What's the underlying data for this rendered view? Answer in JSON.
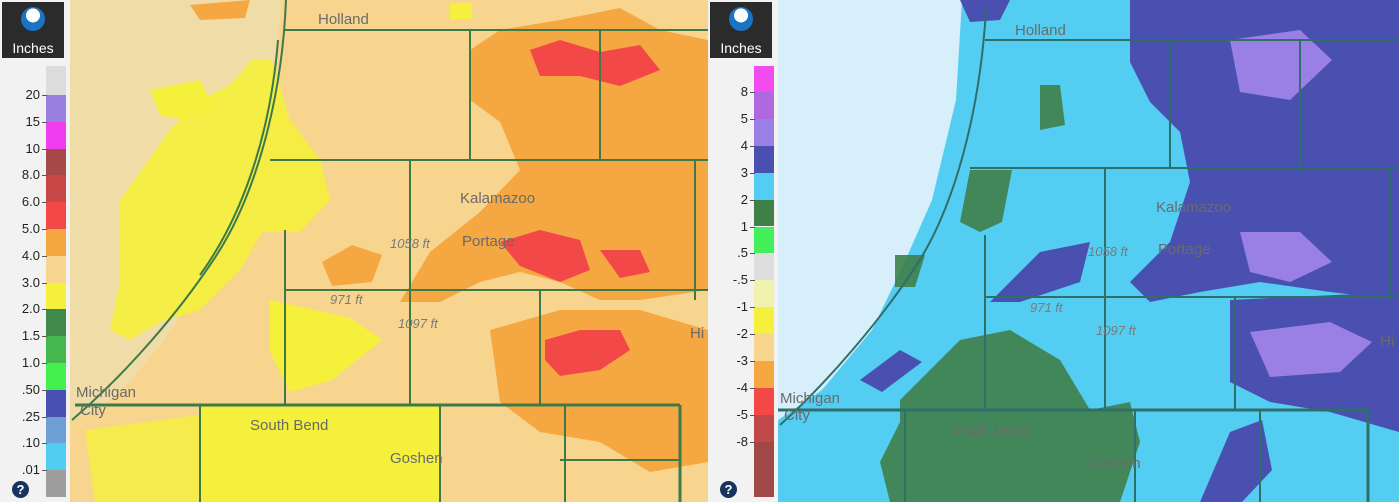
{
  "left_map": {
    "legend": {
      "units": "Inches",
      "ticks": [
        "20",
        "15",
        "10",
        "8.0",
        "6.0",
        "5.0",
        "4.0",
        "3.0",
        "2.0",
        "1.5",
        "1.0",
        ".50",
        ".25",
        ".10",
        ".01"
      ],
      "colors": [
        "#dcdcdc",
        "#9b7fe0",
        "#f23cf0",
        "#a84848",
        "#c84848",
        "#f24848",
        "#f5a742",
        "#f8d58f",
        "#f4f03c",
        "#3f8a4a",
        "#44b84e",
        "#44f04e",
        "#4850b4",
        "#6e9fd4",
        "#52cdf2",
        "#9e9e9e"
      ],
      "help": "?"
    },
    "labels": {
      "holland": "Holland",
      "kalamazoo": "Kalamazoo",
      "portage": "Portage",
      "elev_1058": "1058 ft",
      "elev_971": "971 ft",
      "elev_1097": "1097 ft",
      "michigan": "Michigan",
      "city": "City",
      "south_bend": "South Bend",
      "goshen": "Goshen",
      "hi": "Hi"
    }
  },
  "right_map": {
    "legend": {
      "units": "Inches",
      "ticks": [
        "8",
        "5",
        "4",
        "3",
        "2",
        "1",
        ".5",
        "-.5",
        "-1",
        "-2",
        "-3",
        "-4",
        "-5",
        "-8"
      ],
      "colors": [
        "#f04cf0",
        "#b068e0",
        "#9a80e4",
        "#4a50b0",
        "#54cdf2",
        "#3f7f48",
        "#44f05a",
        "#dedede",
        "#f2f2b0",
        "#f4f03c",
        "#f8d58f",
        "#f5a742",
        "#f24848",
        "#c04848",
        "#a04848",
        "#9e9e9e"
      ],
      "help": "?"
    },
    "labels": {
      "holland": "Holland",
      "kalamazoo": "Kalamazoo",
      "portage": "Portage",
      "elev_1058": "1058 ft",
      "elev_971": "971 ft",
      "elev_1097": "1097 ft",
      "michigan": "Michigan",
      "city": "City",
      "south_bend": "South Bend",
      "goshen": "Goshen",
      "hi": "Hi"
    }
  }
}
